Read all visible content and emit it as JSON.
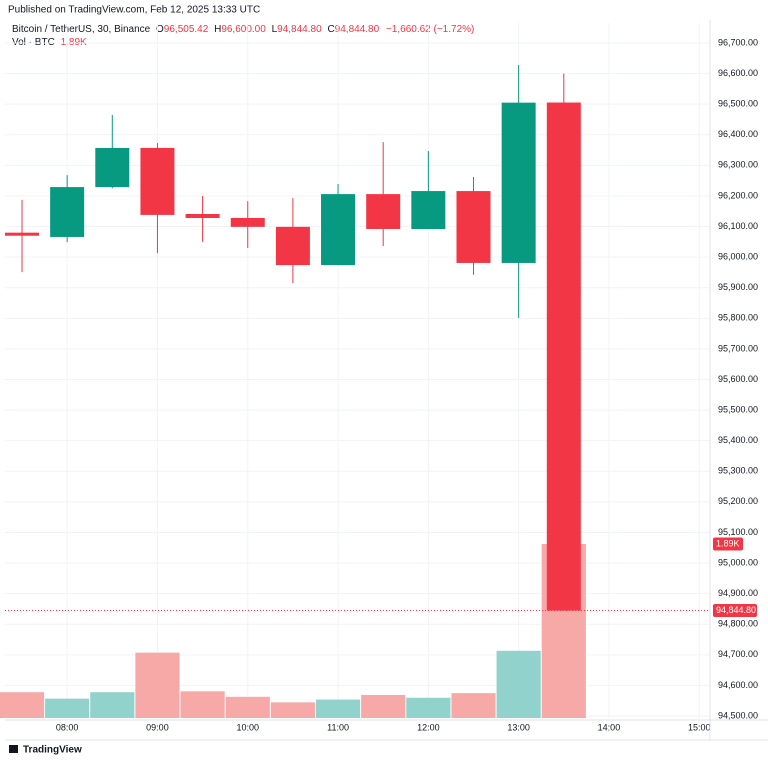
{
  "header": {
    "published": "Published on TradingView.com, Feb 12, 2025 13:33 UTC",
    "logo": "TradingView"
  },
  "chart_data": {
    "type": "candlestick",
    "legend": {
      "symbol": "Bitcoin / TetherUS, 30, Binance",
      "open_key": "O",
      "open": "96,505.42",
      "high_key": "H",
      "high": "96,600.00",
      "low_key": "L",
      "low": "94,844.80",
      "close_key": "C",
      "close": "94,844.80",
      "change": "−1,660.62 (−1.72%)",
      "volume_key": "Vol · BTC",
      "volume": "1.89K"
    },
    "categories": [
      null,
      "08:00",
      null,
      "09:00",
      null,
      "10:00",
      null,
      "11:00",
      null,
      "12:00",
      null,
      "13:00",
      null,
      "14:00",
      null,
      "15:00"
    ],
    "open": [
      96080,
      96066,
      96229,
      96357,
      96141,
      96128,
      96099,
      95974,
      96206,
      96092,
      96216,
      95981,
      96505.42,
      null,
      null,
      null
    ],
    "high": [
      96187,
      96268,
      96465,
      96373,
      96200,
      96183,
      96193,
      96239,
      96376,
      96347,
      96262,
      96628,
      96600,
      null,
      null,
      null
    ],
    "low": [
      95951,
      96049,
      96225,
      96013,
      96050,
      96030,
      95915,
      95974,
      96036,
      96092,
      95942,
      95801,
      94844.8,
      null,
      null,
      null
    ],
    "close": [
      96070,
      96229,
      96357,
      96138,
      96128,
      96099,
      95974,
      96206,
      96092,
      96216,
      95981,
      96505,
      94844.8,
      null,
      null,
      null
    ],
    "volume": [
      0.28,
      0.21,
      0.28,
      0.71,
      0.29,
      0.23,
      0.17,
      0.2,
      0.25,
      0.22,
      0.27,
      0.73,
      1.89,
      null,
      null,
      null
    ],
    "last_price_label": "94,844.80",
    "last_volume_label": "1.89K",
    "up_color": "#089981",
    "down_color": "#f23645",
    "volume_up_color": "#92d2cc",
    "volume_down_color": "#f7a9a7",
    "grid": true,
    "ylim": [
      94500,
      96700
    ],
    "yticks": [
      {
        "value": 94500,
        "label": "94,500.00"
      },
      {
        "value": 94600,
        "label": "94,600.00"
      },
      {
        "value": 94700,
        "label": "94,700.00"
      },
      {
        "value": 94800,
        "label": "94,800.00"
      },
      {
        "value": 94900,
        "label": "94,900.00"
      },
      {
        "value": 95000,
        "label": "95,000.00"
      },
      {
        "value": 95100,
        "label": "95,100.00"
      },
      {
        "value": 95200,
        "label": "95,200.00"
      },
      {
        "value": 95300,
        "label": "95,300.00"
      },
      {
        "value": 95400,
        "label": "95,400.00"
      },
      {
        "value": 95500,
        "label": "95,500.00"
      },
      {
        "value": 95600,
        "label": "95,600.00"
      },
      {
        "value": 95700,
        "label": "95,700.00"
      },
      {
        "value": 95800,
        "label": "95,800.00"
      },
      {
        "value": 95900,
        "label": "95,900.00"
      },
      {
        "value": 96000,
        "label": "96,000.00"
      },
      {
        "value": 96100,
        "label": "96,100.00"
      },
      {
        "value": 96200,
        "label": "96,200.00"
      },
      {
        "value": 96300,
        "label": "96,300.00"
      },
      {
        "value": 96400,
        "label": "96,400.00"
      },
      {
        "value": 96500,
        "label": "96,500.00"
      },
      {
        "value": 96600,
        "label": "96,600.00"
      },
      {
        "value": 96700,
        "label": "96,700.00"
      }
    ]
  }
}
